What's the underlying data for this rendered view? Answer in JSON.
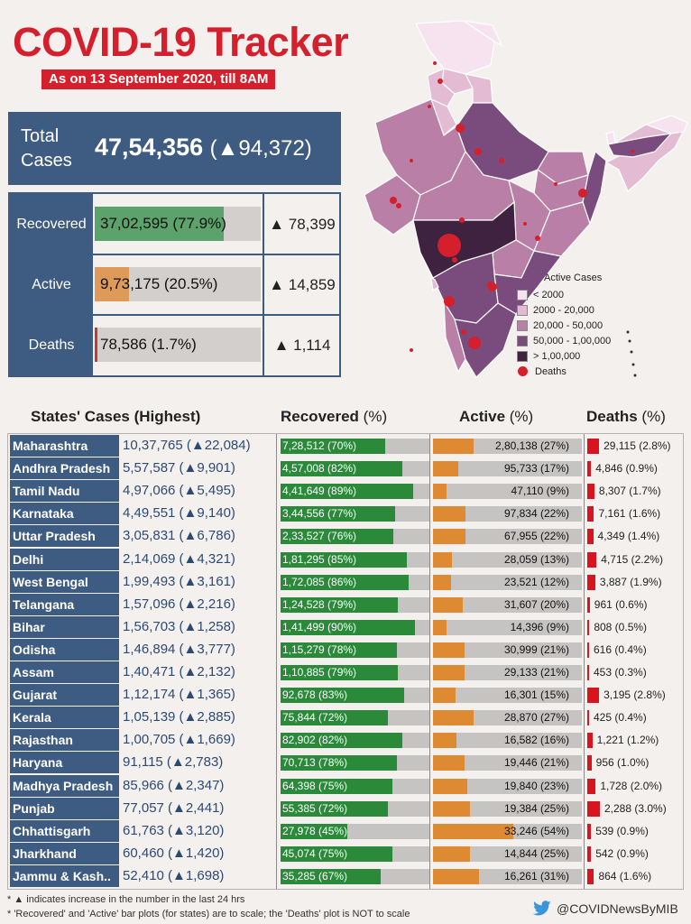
{
  "title": "COVID-19 Tracker",
  "subtitle": "As on 13 September 2020, till 8AM",
  "total": {
    "label": "Total Cases",
    "value": "47,54,356",
    "delta": "(▲94,372)"
  },
  "summary": [
    {
      "label": "Recovered",
      "value": "37,02,595 (77.9%)",
      "delta": "▲ 78,399",
      "pct": 77.9,
      "color": "#5ba36a"
    },
    {
      "label": "Active",
      "value": "9,73,175 (20.5%)",
      "delta": "▲ 14,859",
      "pct": 20.5,
      "color": "#dd9a58"
    },
    {
      "label": "Deaths",
      "value": "78,586 (1.7%)",
      "delta": "▲ 1,114",
      "pct": 1.7,
      "color": "#c23b3b"
    }
  ],
  "legend": {
    "title": "Active Cases",
    "items": [
      {
        "label": "< 2000",
        "color": "#f6e3ef"
      },
      {
        "label": "2000 - 20,000",
        "color": "#e3bcd3"
      },
      {
        "label": "20,000 - 50,000",
        "color": "#b97fa6"
      },
      {
        "label": "50,000 - 1,00,000",
        "color": "#7a4c7e"
      },
      {
        "label": "> 1,00,000",
        "color": "#3f2240"
      }
    ],
    "deaths_label": "Deaths"
  },
  "headers": {
    "states": "States' Cases (Highest)",
    "recovered": "Recovered",
    "active": "Active",
    "deaths": "Deaths",
    "pct": "(%)"
  },
  "states": [
    {
      "name": "Maharashtra",
      "cases": "10,37,765 (▲22,084)",
      "recovered": "7,28,512 (70%)",
      "rec_pct": 70,
      "active": "2,80,138 (27%)",
      "act_pct": 27,
      "deaths": "29,115 (2.8%)",
      "death_pct": 2.8
    },
    {
      "name": "Andhra Pradesh",
      "cases": "5,57,587 (▲9,901)",
      "recovered": "4,57,008 (82%)",
      "rec_pct": 82,
      "active": "95,733 (17%)",
      "act_pct": 17,
      "deaths": "4,846 (0.9%)",
      "death_pct": 0.9
    },
    {
      "name": "Tamil Nadu",
      "cases": "4,97,066 (▲5,495)",
      "recovered": "4,41,649 (89%)",
      "rec_pct": 89,
      "active": "47,110 (9%)",
      "act_pct": 9,
      "deaths": "8,307 (1.7%)",
      "death_pct": 1.7
    },
    {
      "name": "Karnataka",
      "cases": "4,49,551 (▲9,140)",
      "recovered": "3,44,556 (77%)",
      "rec_pct": 77,
      "active": "97,834 (22%)",
      "act_pct": 22,
      "deaths": "7,161 (1.6%)",
      "death_pct": 1.6
    },
    {
      "name": "Uttar Pradesh",
      "cases": "3,05,831 (▲6,786)",
      "recovered": "2,33,527 (76%)",
      "rec_pct": 76,
      "active": "67,955 (22%)",
      "act_pct": 22,
      "deaths": "4,349 (1.4%)",
      "death_pct": 1.4
    },
    {
      "name": "Delhi",
      "cases": "2,14,069 (▲4,321)",
      "recovered": "1,81,295 (85%)",
      "rec_pct": 85,
      "active": "28,059 (13%)",
      "act_pct": 13,
      "deaths": "4,715 (2.2%)",
      "death_pct": 2.2
    },
    {
      "name": "West Bengal",
      "cases": "1,99,493 (▲3,161)",
      "recovered": "1,72,085 (86%)",
      "rec_pct": 86,
      "active": "23,521 (12%)",
      "act_pct": 12,
      "deaths": "3,887 (1.9%)",
      "death_pct": 1.9
    },
    {
      "name": "Telangana",
      "cases": "1,57,096 (▲2,216)",
      "recovered": "1,24,528 (79%)",
      "rec_pct": 79,
      "active": "31,607 (20%)",
      "act_pct": 20,
      "deaths": "961 (0.6%)",
      "death_pct": 0.6
    },
    {
      "name": "Bihar",
      "cases": "1,56,703 (▲1,258)",
      "recovered": "1,41,499 (90%)",
      "rec_pct": 90,
      "active": "14,396 (9%)",
      "act_pct": 9,
      "deaths": "808 (0.5%)",
      "death_pct": 0.5
    },
    {
      "name": "Odisha",
      "cases": "1,46,894 (▲3,777)",
      "recovered": "1,15,279 (78%)",
      "rec_pct": 78,
      "active": "30,999 (21%)",
      "act_pct": 21,
      "deaths": "616 (0.4%)",
      "death_pct": 0.4
    },
    {
      "name": "Assam",
      "cases": "1,40,471 (▲2,132)",
      "recovered": "1,10,885 (79%)",
      "rec_pct": 79,
      "active": "29,133 (21%)",
      "act_pct": 21,
      "deaths": "453 (0.3%)",
      "death_pct": 0.3
    },
    {
      "name": "Gujarat",
      "cases": "1,12,174 (▲1,365)",
      "recovered": "92,678 (83%)",
      "rec_pct": 83,
      "active": "16,301 (15%)",
      "act_pct": 15,
      "deaths": "3,195 (2.8%)",
      "death_pct": 2.8
    },
    {
      "name": "Kerala",
      "cases": "1,05,139 (▲2,885)",
      "recovered": "75,844 (72%)",
      "rec_pct": 72,
      "active": "28,870 (27%)",
      "act_pct": 27,
      "deaths": "425 (0.4%)",
      "death_pct": 0.4
    },
    {
      "name": "Rajasthan",
      "cases": "1,00,705 (▲1,669)",
      "recovered": "82,902 (82%)",
      "rec_pct": 82,
      "active": "16,582 (16%)",
      "act_pct": 16,
      "deaths": "1,221 (1.2%)",
      "death_pct": 1.2
    },
    {
      "name": "Haryana",
      "cases": "91,115 (▲2,783)",
      "recovered": "70,713 (78%)",
      "rec_pct": 78,
      "active": "19,446 (21%)",
      "act_pct": 21,
      "deaths": "956 (1.0%)",
      "death_pct": 1.0
    },
    {
      "name": "Madhya Pradesh",
      "cases": "85,966 (▲2,347)",
      "recovered": "64,398 (75%)",
      "rec_pct": 75,
      "active": "19,840 (23%)",
      "act_pct": 23,
      "deaths": "1,728 (2.0%)",
      "death_pct": 2.0
    },
    {
      "name": "Punjab",
      "cases": "77,057 (▲2,441)",
      "recovered": "55,385 (72%)",
      "rec_pct": 72,
      "active": "19,384 (25%)",
      "act_pct": 25,
      "deaths": "2,288 (3.0%)",
      "death_pct": 3.0
    },
    {
      "name": "Chhattisgarh",
      "cases": "61,763 (▲3,120)",
      "recovered": "27,978 (45%)",
      "rec_pct": 45,
      "active": "33,246 (54%)",
      "act_pct": 54,
      "deaths": "539 (0.9%)",
      "death_pct": 0.9
    },
    {
      "name": "Jharkhand",
      "cases": "60,460 (▲1,420)",
      "recovered": "45,074 (75%)",
      "rec_pct": 75,
      "active": "14,844 (25%)",
      "act_pct": 25,
      "deaths": "542 (0.9%)",
      "death_pct": 0.9
    },
    {
      "name": "Jammu & Kash..",
      "cases": "52,410 (▲1,698)",
      "recovered": "35,285 (67%)",
      "rec_pct": 67,
      "active": "16,261 (31%)",
      "act_pct": 31,
      "deaths": "864 (1.6%)",
      "death_pct": 1.6
    }
  ],
  "footnotes": [
    "* ▲ indicates increase in the number in the last 24 hrs",
    "* 'Recovered' and 'Active' bar plots (for states) are to scale; the 'Deaths' plot is NOT to scale"
  ],
  "twitter_handle": "@COVIDNewsByMIB",
  "colors": {
    "brand_red": "#d41f2c",
    "navy": "#3e5c82",
    "recovered": "#2a8a3a",
    "active": "#dd8a32",
    "deaths": "#d8141f"
  }
}
